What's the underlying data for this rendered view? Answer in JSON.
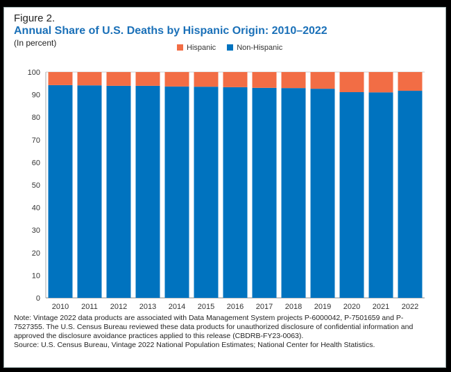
{
  "figure_label": "Figure 2.",
  "chart_data": {
    "type": "bar",
    "stacked": true,
    "title": "Annual Share of U.S. Deaths by Hispanic Origin: 2010–2022",
    "subtitle": "(In percent)",
    "xlabel": "",
    "ylabel": "",
    "ylim": [
      0,
      100
    ],
    "yticks": [
      0,
      10,
      20,
      30,
      40,
      50,
      60,
      70,
      80,
      90,
      100
    ],
    "legend_position": "top-center",
    "categories": [
      "2010",
      "2011",
      "2012",
      "2013",
      "2014",
      "2015",
      "2016",
      "2017",
      "2018",
      "2019",
      "2020",
      "2021",
      "2022"
    ],
    "series": [
      {
        "name": "Non-Hispanic",
        "color": "#0073bf",
        "values": [
          94.2,
          94.1,
          93.9,
          93.9,
          93.6,
          93.5,
          93.3,
          93.0,
          92.9,
          92.6,
          91.1,
          91.0,
          91.7
        ]
      },
      {
        "name": "Hispanic",
        "color": "#f26d45",
        "values": [
          5.8,
          5.9,
          6.1,
          6.1,
          6.4,
          6.5,
          6.7,
          7.0,
          7.1,
          7.4,
          8.9,
          9.0,
          8.3
        ]
      }
    ]
  },
  "notes": {
    "note": "Note: Vintage 2022 data products are associated with Data Management System projects P-6000042, P-7501659 and P-7527355. The U.S. Census Bureau reviewed these data products for unauthorized disclosure of confidential information and approved the disclosure avoidance practices applied to this release (CBDRB-FY23-0063).",
    "source": "Source: U.S. Census Bureau, Vintage 2022 National Population Estimates; National Center for Health Statistics."
  }
}
